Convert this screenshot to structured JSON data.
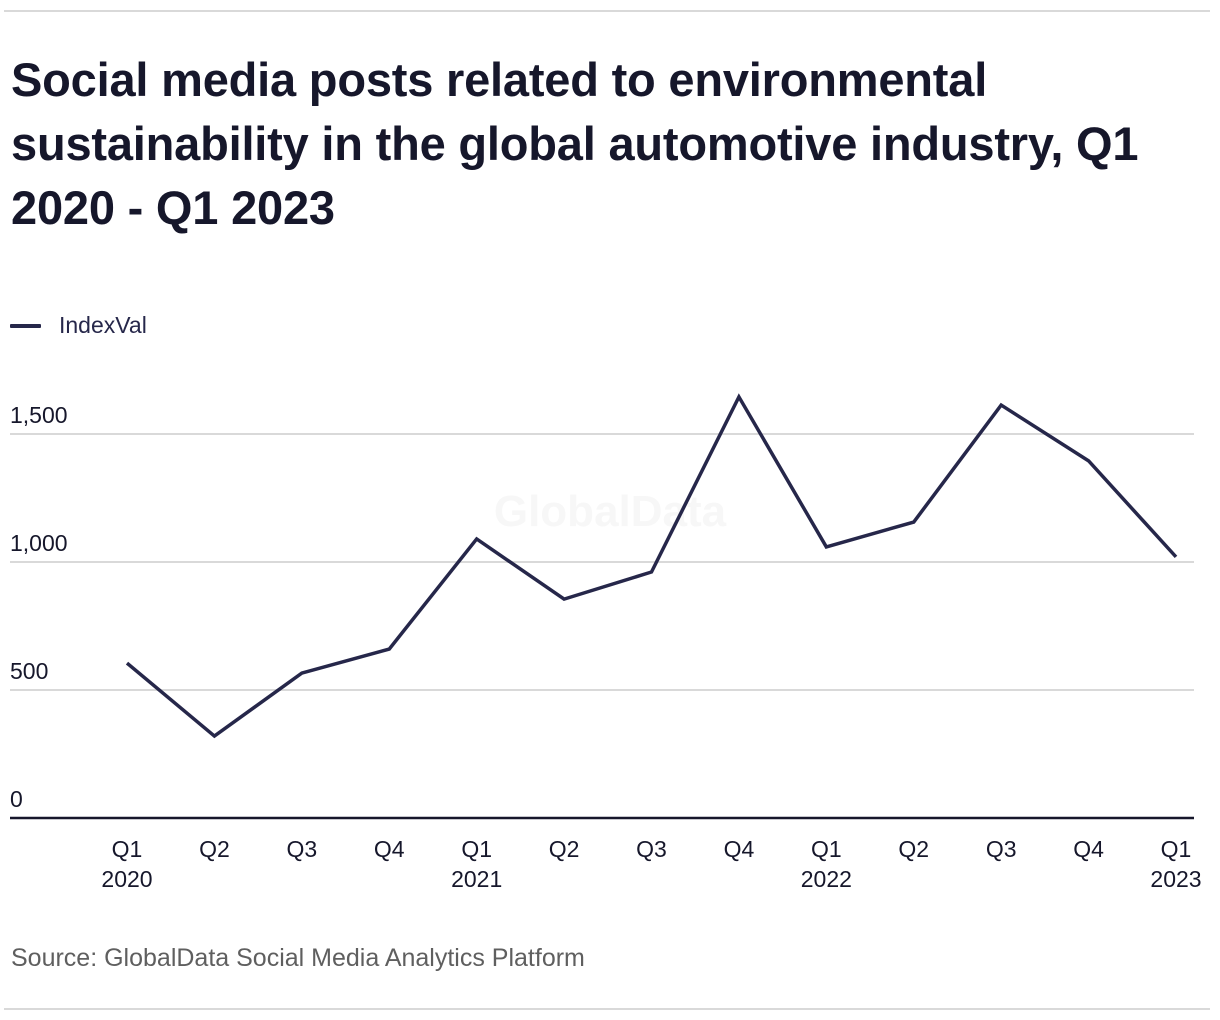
{
  "title": "Social media posts related to environmental sustainability in the global automotive industry, Q1 2020 - Q1 2023",
  "legend": {
    "label": "IndexVal",
    "color": "#26274a"
  },
  "source": "Source: GlobalData Social Media Analytics Platform",
  "watermark": "GlobalData",
  "colors": {
    "line": "#26274a",
    "grid": "#d9d9d9",
    "axis": "#16172b",
    "text": "#16172b",
    "source": "#5f5f5f",
    "watermark": "#f7f7f7"
  },
  "chart_data": {
    "type": "line",
    "title": "Social media posts related to environmental sustainability in the global automotive industry, Q1 2020 - Q1 2023",
    "xlabel": "",
    "ylabel": "",
    "ylim": [
      0,
      1700
    ],
    "yticks": [
      0,
      500,
      1000,
      1500
    ],
    "ytick_labels": [
      "0",
      "500",
      "1,000",
      "1,500"
    ],
    "grid": true,
    "legend_position": "top-left",
    "categories": [
      "Q1 2020",
      "Q2 2020",
      "Q3 2020",
      "Q4 2020",
      "Q1 2021",
      "Q2 2021",
      "Q3 2021",
      "Q4 2021",
      "Q1 2022",
      "Q2 2022",
      "Q3 2022",
      "Q4 2022",
      "Q1 2023"
    ],
    "xtick_labels": [
      {
        "line1": "Q1",
        "line2": "2020"
      },
      {
        "line1": "Q2",
        "line2": ""
      },
      {
        "line1": "Q3",
        "line2": ""
      },
      {
        "line1": "Q4",
        "line2": ""
      },
      {
        "line1": "Q1",
        "line2": "2021"
      },
      {
        "line1": "Q2",
        "line2": ""
      },
      {
        "line1": "Q3",
        "line2": ""
      },
      {
        "line1": "Q4",
        "line2": ""
      },
      {
        "line1": "Q1",
        "line2": "2022"
      },
      {
        "line1": "Q2",
        "line2": ""
      },
      {
        "line1": "Q3",
        "line2": ""
      },
      {
        "line1": "Q4",
        "line2": ""
      },
      {
        "line1": "Q1",
        "line2": "2023"
      }
    ],
    "series": [
      {
        "name": "IndexVal",
        "values": [
          605,
          320,
          566,
          660,
          1090,
          855,
          961,
          1645,
          1059,
          1156,
          1613,
          1395,
          1020
        ]
      }
    ]
  }
}
